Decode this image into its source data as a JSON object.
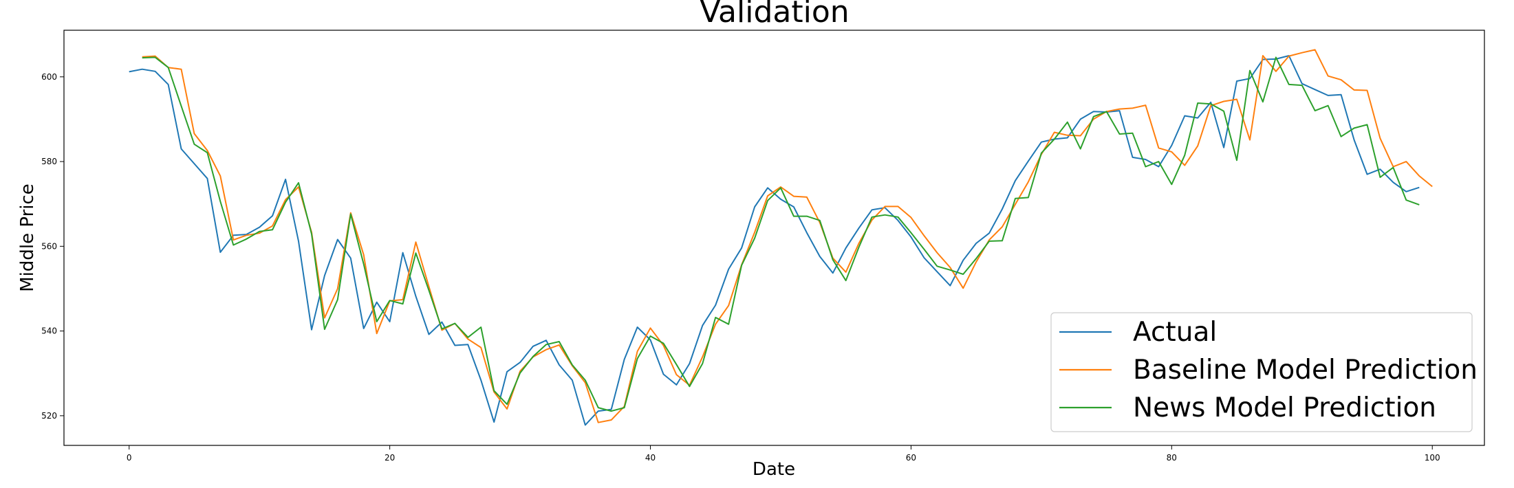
{
  "chart_data": {
    "type": "line",
    "title": "Validation",
    "xlabel": "Date",
    "ylabel": "Middle Price",
    "xlim": [
      -5,
      104
    ],
    "ylim": [
      513,
      611
    ],
    "xticks": [
      0,
      20,
      40,
      60,
      80,
      100
    ],
    "yticks": [
      520,
      540,
      560,
      580,
      600
    ],
    "grid": false,
    "legend_position": "lower-right",
    "series": [
      {
        "name": "Actual",
        "color": "#1f77b4",
        "x_start": 0,
        "values": [
          601.2,
          601.8,
          601.3,
          598.2,
          583,
          579.5,
          576,
          558.6,
          562.6,
          562.8,
          564.5,
          567.2,
          575.8,
          561.2,
          540.3,
          553.1,
          561.6,
          557.2,
          540.6,
          546.8,
          542.2,
          558.5,
          548.2,
          539.2,
          542.1,
          536.6,
          536.8,
          528.4,
          518.5,
          530.4,
          532.6,
          536.4,
          537.8,
          532,
          528.4,
          517.8,
          521.1,
          521.5,
          533.3,
          540.9,
          537.9,
          529.8,
          527.3,
          532.3,
          541.3,
          546.1,
          554.6,
          559.6,
          569.3,
          573.8,
          571.1,
          569.3,
          563.2,
          557.6,
          553.7,
          559.6,
          564.3,
          568.6,
          569.1,
          566.1,
          562.2,
          557.3,
          554,
          550.7,
          556.7,
          560.7,
          563.1,
          568.8,
          575.5,
          580.1,
          584.6,
          585.3,
          585.6,
          590,
          591.8,
          591.7,
          592,
          581,
          580.5,
          578.8,
          583.8,
          590.8,
          590.3,
          594,
          583.3,
          599,
          599.6,
          604.1,
          604.2,
          605,
          598.4,
          597,
          595.6,
          595.8,
          585.1,
          577,
          578.2,
          575.1,
          572.9,
          573.9
        ]
      },
      {
        "name": "Baseline Model Prediction",
        "color": "#ff7f0e",
        "x_start": 1,
        "values": [
          604.7,
          604.9,
          602.2,
          601.8,
          586.6,
          582.6,
          576.6,
          561.5,
          562.6,
          563.1,
          564.8,
          571,
          574,
          563.3,
          543.1,
          550,
          567.9,
          558,
          539.4,
          547.1,
          547.4,
          561,
          550.5,
          540.2,
          541.8,
          538.1,
          536.1,
          525.6,
          521.6,
          530.5,
          533.9,
          535.6,
          536.7,
          531.8,
          527.8,
          518.4,
          519,
          522.2,
          535.2,
          540.7,
          536.6,
          529.7,
          527.2,
          533.9,
          541.6,
          546,
          555.6,
          563.3,
          571.9,
          574,
          571.8,
          571.6,
          565.6,
          557.2,
          553.9,
          560.7,
          566.2,
          569.4,
          569.4,
          566.8,
          562.5,
          558.5,
          555,
          550.1,
          556.3,
          561.5,
          564.6,
          569.9,
          575.2,
          581.7,
          586.9,
          586.2,
          586.1,
          590,
          591.8,
          592.4,
          592.6,
          593.3,
          583.2,
          582.3,
          579.1,
          583.7,
          593.2,
          594.2,
          594.7,
          585.1,
          605,
          601.3,
          604.9,
          605.7,
          606.4,
          600.2,
          599.3,
          596.9,
          596.8,
          585.5,
          578.8,
          580,
          576.6,
          574.1
        ]
      },
      {
        "name": "News Model Prediction",
        "color": "#2ca02c",
        "x_start": 1,
        "values": [
          604.5,
          604.6,
          602.2,
          593.1,
          584.1,
          582.1,
          570.6,
          560.3,
          561.7,
          563.5,
          563.9,
          570.4,
          575,
          562.9,
          540.4,
          547.4,
          567.6,
          555.8,
          542.2,
          547.2,
          546.4,
          558.4,
          549.6,
          540.5,
          541.8,
          538.5,
          540.9,
          525.9,
          522.7,
          530.1,
          534,
          536.8,
          537.5,
          532,
          528.4,
          521.9,
          521.1,
          521.9,
          533.5,
          538.8,
          537.1,
          532.1,
          526.9,
          532.3,
          543.2,
          541.6,
          555.5,
          561.9,
          570.8,
          573.8,
          567.1,
          567.1,
          566.1,
          556.8,
          551.9,
          559.8,
          566.9,
          567.4,
          566.9,
          563.2,
          559.3,
          555.3,
          554.4,
          553.4,
          557.1,
          561.2,
          561.3,
          571.3,
          571.5,
          582,
          585.3,
          589.3,
          583,
          590.6,
          591.8,
          586.5,
          586.7,
          578.8,
          580,
          574.6,
          581.5,
          593.8,
          593.6,
          591.9,
          580.3,
          601.5,
          594.1,
          604.6,
          598.2,
          598,
          592,
          593.2,
          585.9,
          587.9,
          588.7,
          576.3,
          578.6,
          570.9,
          569.8
        ]
      }
    ]
  }
}
